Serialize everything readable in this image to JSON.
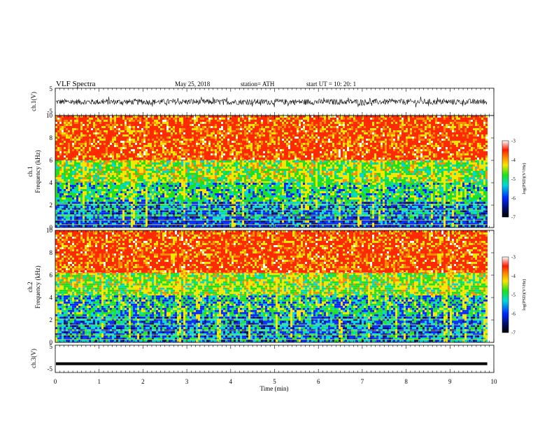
{
  "header": {
    "title": "VLF  Spectra",
    "date": "May 25, 2018",
    "station": "station= ATH",
    "start": "start  UT  =    10: 20: 1"
  },
  "chart_data": [
    {
      "type": "line",
      "name": "ch1-waveform",
      "ylabel": "ch.1(V)",
      "yticks": [
        "5",
        "-5"
      ],
      "ylim": [
        -5,
        5
      ],
      "xlim": [
        0,
        9.85
      ],
      "amplitude_note_values": [
        -1.5,
        1.5
      ]
    },
    {
      "type": "heatmap",
      "name": "ch1-spectrogram",
      "ylabel_ch": "ch.1",
      "ylabel": "Frequency  (kHz)",
      "ylim": [
        0,
        10
      ],
      "yticks": [
        "0",
        "2",
        "4",
        "6",
        "8",
        "10"
      ],
      "xlim": [
        0,
        9.85
      ],
      "bands": [
        {
          "from": 0,
          "to": 0.8,
          "level": "blue"
        },
        {
          "from": 0.8,
          "to": 2.3,
          "level": "cyan-blue"
        },
        {
          "from": 2.3,
          "to": 4.0,
          "level": "green-cyan"
        },
        {
          "from": 4.0,
          "to": 6.0,
          "level": "yellow-green"
        },
        {
          "from": 6.0,
          "to": 10.0,
          "level": "red"
        }
      ],
      "colorbar": {
        "label": "log(PSD)(V²/Hz)",
        "ticks": [
          "-3",
          "-4",
          "-5",
          "-6",
          "-7"
        ],
        "range": [
          -7,
          -3
        ]
      }
    },
    {
      "type": "heatmap",
      "name": "ch2-spectrogram",
      "ylabel_ch": "ch.2",
      "ylabel": "Frequency  (kHz)",
      "ylim": [
        0,
        10
      ],
      "yticks": [
        "0",
        "2",
        "4",
        "6",
        "8",
        "10"
      ],
      "xlim": [
        0,
        9.85
      ],
      "bands": [
        {
          "from": 0,
          "to": 2.3,
          "level": "cyan-blue"
        },
        {
          "from": 2.3,
          "to": 4.2,
          "level": "blue-green"
        },
        {
          "from": 4.2,
          "to": 6.2,
          "level": "yellow-green"
        },
        {
          "from": 6.2,
          "to": 10.0,
          "level": "red"
        }
      ],
      "colorbar": {
        "label": "log(PSD)(V²/Hz)",
        "ticks": [
          "-3",
          "-4",
          "-5",
          "-6",
          "-7"
        ],
        "range": [
          -7,
          -3
        ]
      }
    },
    {
      "type": "line",
      "name": "ch3-waveform",
      "ylabel": "ch.3(V)",
      "yticks": [
        "5",
        "-5"
      ],
      "ylim": [
        -5,
        5
      ],
      "xlim": [
        0,
        9.85
      ],
      "constant_value": -1.8
    }
  ],
  "xaxis": {
    "label": "Time  (min)",
    "ticks": [
      "0",
      "1",
      "2",
      "3",
      "4",
      "5",
      "6",
      "7",
      "8",
      "9",
      "10"
    ],
    "xlim": [
      0,
      10
    ]
  },
  "colors": {
    "red": "#ff2a00",
    "orange": "#ff8a00",
    "yellow": "#f5e600",
    "green": "#1ee01e",
    "cyan": "#00d8d8",
    "blue": "#0028ff",
    "navy": "#001070"
  }
}
